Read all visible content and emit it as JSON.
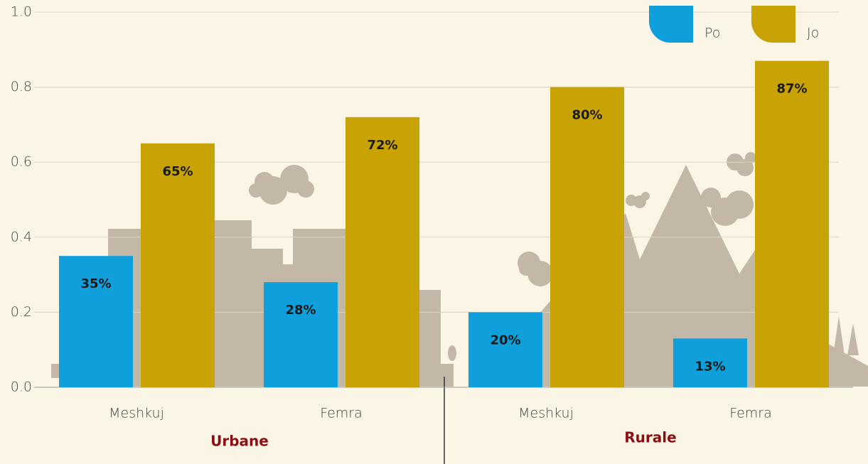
{
  "chart_data": {
    "type": "bar",
    "categories": [
      "Meshkuj",
      "Femra",
      "Meshkuj",
      "Femra"
    ],
    "groups": [
      "Urbane",
      "Rurale"
    ],
    "series": [
      {
        "name": "Po",
        "color": "#0f9fdb",
        "values": [
          0.35,
          0.28,
          0.2,
          0.13
        ],
        "value_labels": [
          "35%",
          "28%",
          "20%",
          "13%"
        ]
      },
      {
        "name": "Jo",
        "color": "#c9a204",
        "values": [
          0.65,
          0.72,
          0.8,
          0.87
        ],
        "value_labels": [
          "65%",
          "72%",
          "80%",
          "87%"
        ]
      }
    ],
    "ylim": [
      0,
      1
    ],
    "yticks": [
      {
        "value": 0,
        "label": "0.0"
      },
      0.2,
      0.4,
      0.6,
      0.8,
      {
        "value": 1,
        "label": "1.0"
      }
    ],
    "grid": true,
    "legend": "top-right"
  }
}
